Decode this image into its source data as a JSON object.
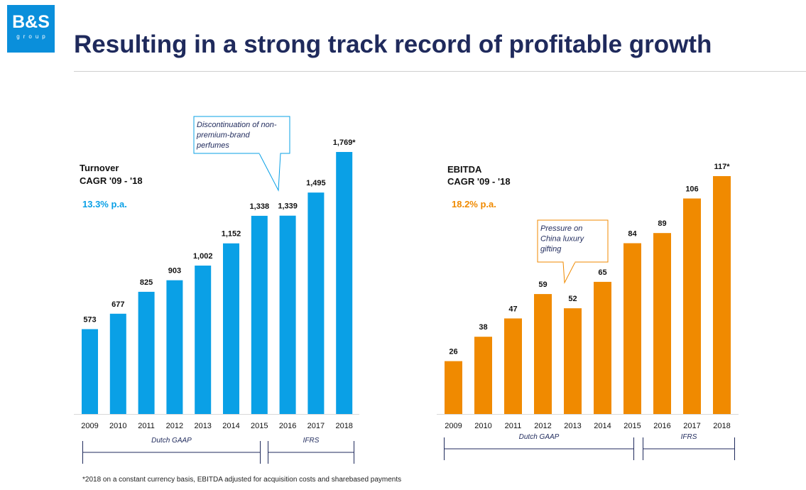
{
  "header": {
    "logo_text": "B&S",
    "logo_subtext": "group",
    "title": "Resulting in a strong track record of profitable growth"
  },
  "footnote": "*2018 on a constant currency basis, EBITDA adjusted for acquisition costs and sharebased payments",
  "chart_data": [
    {
      "type": "bar",
      "title": "Turnover",
      "subtitle": "CAGR '09 - '18",
      "cagr": "13.3% p.a.",
      "color": "#0aa0e6",
      "categories": [
        "2009",
        "2010",
        "2011",
        "2012",
        "2013",
        "2014",
        "2015",
        "2016",
        "2017",
        "2018"
      ],
      "values": [
        573,
        677,
        825,
        903,
        1002,
        1152,
        1338,
        1339,
        1495,
        1769
      ],
      "value_labels": [
        "573",
        "677",
        "825",
        "903",
        "1,002",
        "1,152",
        "1,338",
        "1,339",
        "1,495",
        "1,769*"
      ],
      "callout": "Discontinuation of non-premium-brand perfumes",
      "callout_lines": [
        "Discontinuation of non-",
        "premium-brand",
        "perfumes"
      ],
      "brackets": [
        {
          "label": "Dutch GAAP",
          "from": "2009",
          "to": "2015"
        },
        {
          "label": "IFRS",
          "from": "2016",
          "to": "2018"
        }
      ]
    },
    {
      "type": "bar",
      "title": "EBITDA",
      "subtitle": "CAGR '09 - '18",
      "cagr": "18.2% p.a.",
      "color": "#f08a00",
      "categories": [
        "2009",
        "2010",
        "2011",
        "2012",
        "2013",
        "2014",
        "2015",
        "2016",
        "2017",
        "2018"
      ],
      "values": [
        26,
        38,
        47,
        59,
        52,
        65,
        84,
        89,
        106,
        117
      ],
      "value_labels": [
        "26",
        "38",
        "47",
        "59",
        "52",
        "65",
        "84",
        "89",
        "106",
        "117*"
      ],
      "callout": "Pressure on China luxury gifting",
      "callout_lines": [
        "Pressure on",
        "China luxury",
        "gifting"
      ],
      "brackets": [
        {
          "label": "Dutch GAAP",
          "from": "2009",
          "to": "2015"
        },
        {
          "label": "IFRS",
          "from": "2016",
          "to": "2018"
        }
      ]
    }
  ]
}
